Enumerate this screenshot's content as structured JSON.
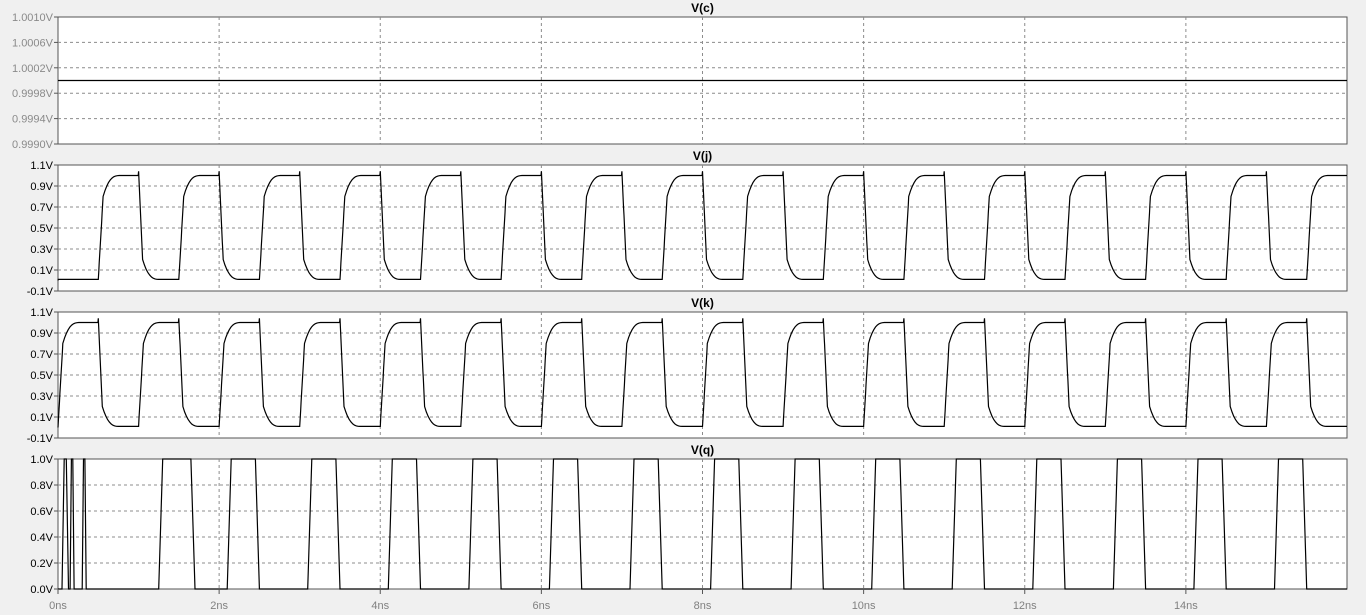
{
  "chart_data": [
    {
      "type": "line",
      "title": "V(c)",
      "ylim": [
        0.999,
        1.001
      ],
      "yticks": [
        "1.0010V",
        "1.0006V",
        "1.0002V",
        "0.9998V",
        "0.9994V",
        "0.9990V"
      ],
      "ytick_color": "#8a8a8a",
      "grid": true,
      "series": [
        {
          "x": [
            0,
            16
          ],
          "y": [
            1.0,
            1.0
          ]
        }
      ]
    },
    {
      "type": "line",
      "title": "V(j)",
      "ylim": [
        -0.1,
        1.1
      ],
      "yticks": [
        "1.1V",
        "0.9V",
        "0.7V",
        "0.5V",
        "0.3V",
        "0.1V",
        "-0.1V"
      ],
      "grid": true,
      "waveform": {
        "kind": "clock",
        "period_ns": 1.0,
        "high_start_ns": 0.5,
        "first_edge_ns": 0.5,
        "low_v": 0.01,
        "high_v": 1.0,
        "overshoot_v": 1.04,
        "end_ns": 16
      }
    },
    {
      "type": "line",
      "title": "V(k)",
      "ylim": [
        -0.1,
        1.1
      ],
      "yticks": [
        "1.1V",
        "0.9V",
        "0.7V",
        "0.5V",
        "0.3V",
        "0.1V",
        "-0.1V"
      ],
      "grid": true,
      "waveform": {
        "kind": "clock",
        "period_ns": 1.0,
        "high_start_ns": 0.0,
        "first_edge_ns": 0.0,
        "low_v": 0.01,
        "high_v": 1.0,
        "overshoot_v": 1.04,
        "end_ns": 16
      }
    },
    {
      "type": "line",
      "title": "V(q)",
      "ylim": [
        0.0,
        1.0
      ],
      "yticks": [
        "1.0V",
        "0.8V",
        "0.6V",
        "0.4V",
        "0.2V",
        "0.0V"
      ],
      "grid": true,
      "waveform": {
        "kind": "pulses",
        "end_ns": 16,
        "pulses_ns": [
          [
            0.05,
            0.13
          ],
          [
            0.15,
            0.2
          ],
          [
            0.3,
            0.35
          ],
          [
            1.25,
            1.7
          ],
          [
            2.1,
            2.5
          ],
          [
            3.1,
            3.5
          ],
          [
            4.1,
            4.5
          ],
          [
            5.1,
            5.5
          ],
          [
            6.1,
            6.5
          ],
          [
            7.1,
            7.5
          ],
          [
            8.1,
            8.5
          ],
          [
            9.1,
            9.5
          ],
          [
            10.1,
            10.5
          ],
          [
            11.1,
            11.5
          ],
          [
            12.1,
            12.5
          ],
          [
            13.1,
            13.5
          ],
          [
            14.1,
            14.5
          ],
          [
            15.1,
            15.5
          ]
        ],
        "edge_ns": 0.05
      }
    }
  ],
  "x_axis": {
    "xlim": [
      0,
      16
    ],
    "tick_labels": [
      "0ns",
      "2ns",
      "4ns",
      "6ns",
      "8ns",
      "10ns",
      "12ns",
      "14ns"
    ],
    "tick_values": [
      0,
      2,
      4,
      6,
      8,
      10,
      12,
      14
    ],
    "tick_color": "#808080"
  }
}
